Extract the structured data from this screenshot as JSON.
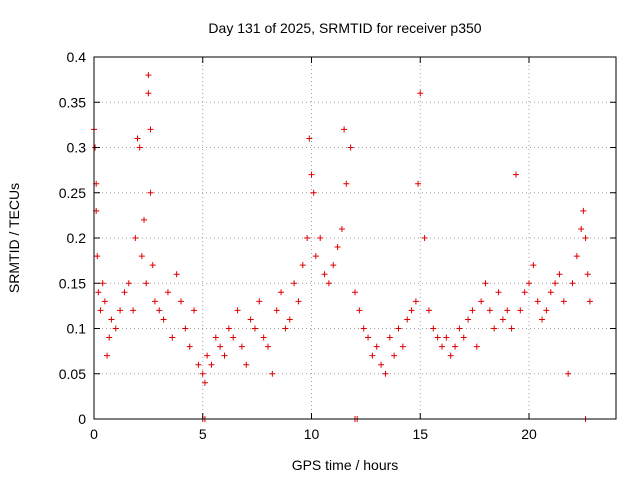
{
  "chart_data": {
    "type": "scatter",
    "title": "Day 131 of 2025, SRMTID for receiver p350",
    "xlabel": "GPS time / hours",
    "ylabel": "SRMTID / TECUs",
    "xlim": [
      0,
      24
    ],
    "ylim": [
      0,
      0.4
    ],
    "xticks": [
      0,
      5,
      10,
      15,
      20
    ],
    "yticks": [
      0,
      0.05,
      0.1,
      0.15,
      0.2,
      0.25,
      0.3,
      0.35,
      0.4
    ],
    "grid": true,
    "series": [
      {
        "name": "SRMTID",
        "color": "#e00000",
        "marker": "+",
        "x": [
          0.0,
          0.05,
          0.1,
          0.1,
          0.15,
          0.2,
          0.3,
          0.4,
          0.5,
          0.6,
          0.7,
          0.8,
          1.0,
          1.2,
          1.4,
          1.6,
          1.8,
          1.9,
          2.0,
          2.1,
          2.2,
          2.3,
          2.4,
          2.5,
          2.5,
          2.6,
          2.6,
          2.7,
          2.8,
          3.0,
          3.2,
          3.4,
          3.6,
          3.8,
          4.0,
          4.2,
          4.4,
          4.6,
          4.8,
          5.0,
          5.1,
          5.2,
          5.4,
          5.6,
          5.8,
          6.0,
          6.2,
          6.4,
          6.6,
          6.8,
          7.0,
          7.2,
          7.4,
          7.6,
          7.8,
          8.0,
          8.2,
          8.4,
          8.6,
          8.8,
          9.0,
          9.2,
          9.4,
          9.6,
          9.8,
          9.9,
          10.0,
          10.1,
          10.2,
          10.4,
          10.6,
          10.8,
          11.0,
          11.2,
          11.4,
          11.5,
          11.6,
          11.8,
          12.0,
          12.2,
          12.4,
          12.6,
          12.8,
          13.0,
          13.2,
          13.4,
          13.6,
          13.8,
          14.0,
          14.2,
          14.4,
          14.6,
          14.8,
          14.9,
          15.0,
          15.2,
          15.4,
          15.6,
          15.8,
          16.0,
          16.2,
          16.4,
          16.6,
          16.8,
          17.0,
          17.2,
          17.4,
          17.6,
          17.8,
          18.0,
          18.2,
          18.4,
          18.6,
          18.8,
          19.0,
          19.2,
          19.4,
          19.6,
          19.8,
          20.0,
          20.2,
          20.4,
          20.6,
          20.8,
          21.0,
          21.2,
          21.4,
          21.6,
          21.8,
          22.0,
          22.2,
          22.4,
          22.5,
          22.6,
          22.7,
          22.8
        ],
        "y": [
          0.32,
          0.3,
          0.26,
          0.23,
          0.18,
          0.14,
          0.12,
          0.15,
          0.13,
          0.07,
          0.09,
          0.11,
          0.1,
          0.12,
          0.14,
          0.15,
          0.12,
          0.2,
          0.31,
          0.3,
          0.18,
          0.22,
          0.15,
          0.38,
          0.36,
          0.32,
          0.25,
          0.17,
          0.13,
          0.12,
          0.11,
          0.14,
          0.09,
          0.16,
          0.13,
          0.1,
          0.08,
          0.12,
          0.06,
          0.05,
          0.04,
          0.07,
          0.06,
          0.09,
          0.08,
          0.07,
          0.1,
          0.09,
          0.12,
          0.08,
          0.06,
          0.11,
          0.1,
          0.13,
          0.09,
          0.08,
          0.05,
          0.12,
          0.14,
          0.1,
          0.11,
          0.15,
          0.13,
          0.17,
          0.2,
          0.31,
          0.27,
          0.25,
          0.18,
          0.2,
          0.16,
          0.15,
          0.17,
          0.19,
          0.21,
          0.32,
          0.26,
          0.3,
          0.14,
          0.12,
          0.1,
          0.09,
          0.07,
          0.08,
          0.06,
          0.05,
          0.09,
          0.07,
          0.1,
          0.08,
          0.11,
          0.12,
          0.13,
          0.26,
          0.36,
          0.2,
          0.12,
          0.1,
          0.09,
          0.08,
          0.09,
          0.07,
          0.08,
          0.1,
          0.09,
          0.11,
          0.12,
          0.08,
          0.13,
          0.15,
          0.12,
          0.1,
          0.14,
          0.11,
          0.12,
          0.1,
          0.27,
          0.12,
          0.14,
          0.15,
          0.17,
          0.13,
          0.11,
          0.12,
          0.14,
          0.15,
          0.16,
          0.13,
          0.05,
          0.15,
          0.18,
          0.21,
          0.23,
          0.2,
          0.16,
          0.13
        ],
        "zero_markers_x": [
          5.0,
          5.1,
          12.0,
          12.1,
          22.6
        ]
      }
    ]
  }
}
